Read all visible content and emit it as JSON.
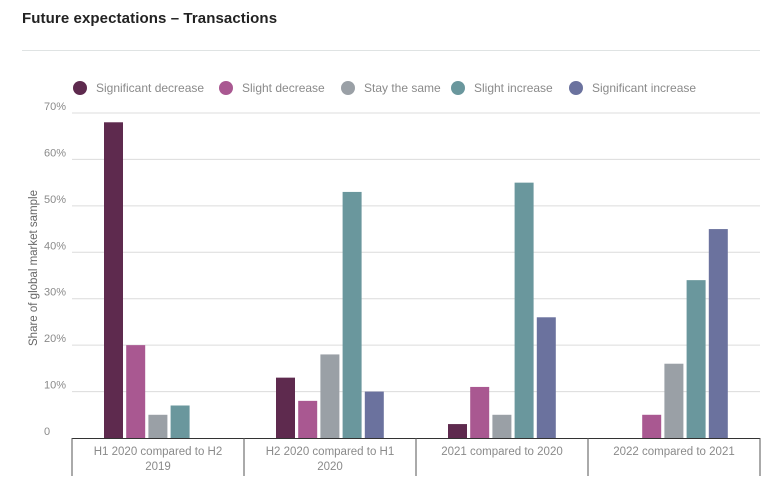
{
  "page": {
    "title": "Future expectations – Transactions"
  },
  "chart_data": {
    "type": "bar",
    "title": "Future expectations – Transactions",
    "xlabel": "",
    "ylabel": "Share of global market sample",
    "ylim": [
      0,
      70
    ],
    "yticks": [
      0,
      10,
      20,
      30,
      40,
      50,
      60,
      70
    ],
    "ytick_labels": [
      "0",
      "10%",
      "20%",
      "30%",
      "40%",
      "50%",
      "60%",
      "70%"
    ],
    "grid": true,
    "legend_position": "top",
    "categories": [
      [
        "H1 2020 compared to H2",
        "2019"
      ],
      [
        "H2 2020 compared to H1",
        "2020"
      ],
      [
        "2021 compared to 2020"
      ],
      [
        "2022 compared to 2021"
      ]
    ],
    "series": [
      {
        "name": "Significant decrease",
        "color": "#5e2a4e",
        "values": [
          68,
          13,
          3,
          0
        ]
      },
      {
        "name": "Slight decrease",
        "color": "#a95891",
        "values": [
          20,
          8,
          11,
          5
        ]
      },
      {
        "name": "Stay the same",
        "color": "#9aa0a6",
        "values": [
          5,
          18,
          5,
          16
        ]
      },
      {
        "name": "Slight increase",
        "color": "#6a979d",
        "values": [
          7,
          53,
          55,
          34
        ]
      },
      {
        "name": "Significant increase",
        "color": "#6b729e",
        "values": [
          0,
          10,
          26,
          45
        ]
      }
    ]
  }
}
